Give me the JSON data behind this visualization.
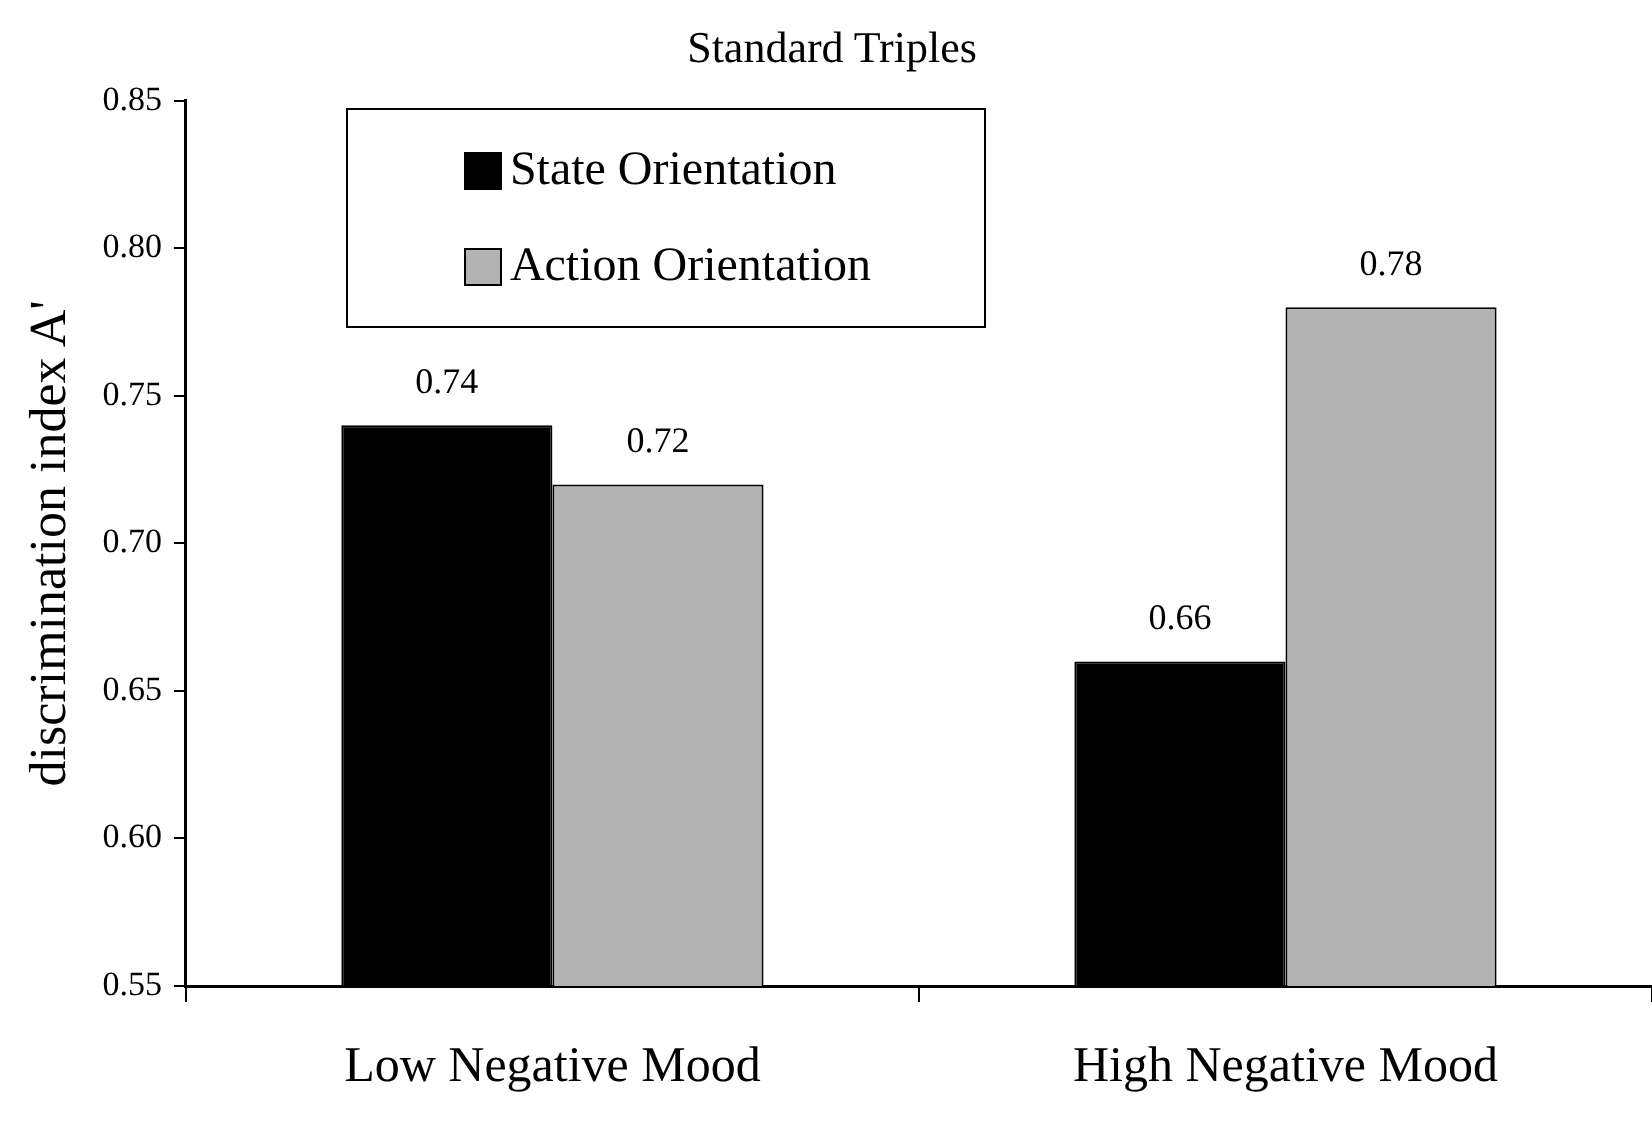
{
  "chart_data": {
    "type": "bar",
    "title": "Standard Triples",
    "ylabel": "discrimination index A'",
    "categories": [
      "Low Negative Mood",
      "High Negative Mood"
    ],
    "series": [
      {
        "name": "State Orientation",
        "color": "#000000",
        "values": [
          0.74,
          0.66
        ]
      },
      {
        "name": "Action Orientation",
        "color": "#b3b3b3",
        "values": [
          0.72,
          0.78
        ]
      }
    ],
    "ylim": [
      0.55,
      0.85
    ],
    "yticks": [
      0.55,
      {
        "value": 0.6,
        "label": "0.60"
      },
      0.65,
      {
        "value": 0.7,
        "label": "0.70"
      },
      0.75,
      {
        "value": 0.8,
        "label": "0.80"
      },
      0.85
    ],
    "grid": false,
    "legend": "top left",
    "data_labels": true
  }
}
